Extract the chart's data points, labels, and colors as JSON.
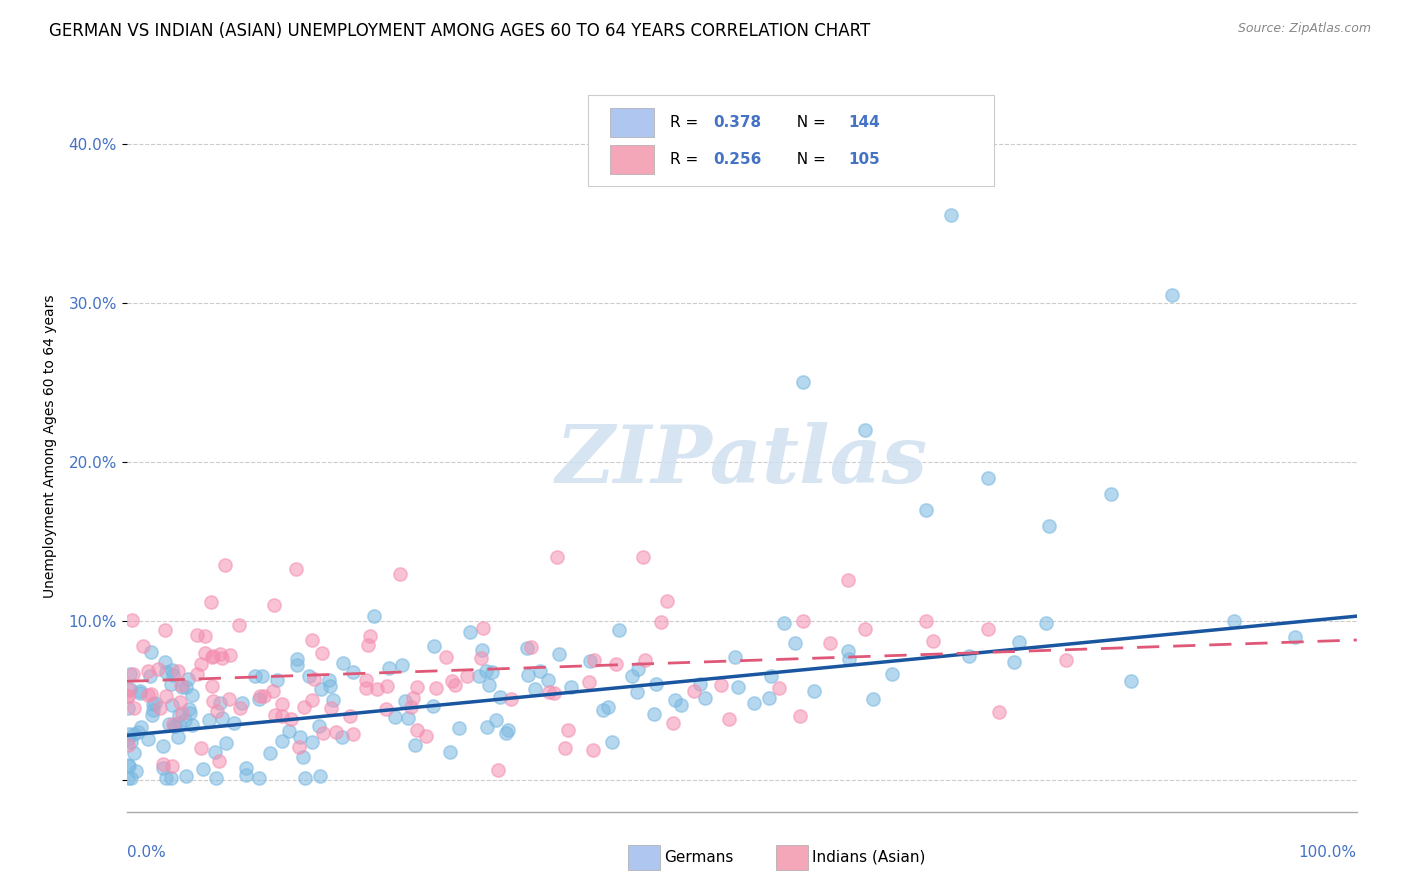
{
  "title": "GERMAN VS INDIAN (ASIAN) UNEMPLOYMENT AMONG AGES 60 TO 64 YEARS CORRELATION CHART",
  "source": "Source: ZipAtlas.com",
  "ylabel": "Unemployment Among Ages 60 to 64 years",
  "xlim": [
    0.0,
    1.0
  ],
  "ylim": [
    -0.02,
    0.44
  ],
  "ytick_vals": [
    0.0,
    0.1,
    0.2,
    0.3,
    0.4
  ],
  "ytick_labels": [
    "",
    "10.0%",
    "20.0%",
    "30.0%",
    "40.0%"
  ],
  "german_color": "#7ab8e0",
  "indian_color": "#f48fb1",
  "german_line_color": "#1a56a0",
  "indian_line_color": "#e05878",
  "german_R": 0.378,
  "german_N": 144,
  "indian_R": 0.256,
  "indian_N": 105,
  "title_fontsize": 12,
  "axis_label_fontsize": 10,
  "tick_fontsize": 11,
  "legend_blue_color": "#aec6f0",
  "legend_pink_color": "#f4a7b9",
  "legend_text_color": "#4472c4",
  "ytick_color": "#4472c4",
  "xlabel_color": "#4472c4",
  "watermark_color": "#d0e0f0",
  "grid_color": "#cccccc"
}
